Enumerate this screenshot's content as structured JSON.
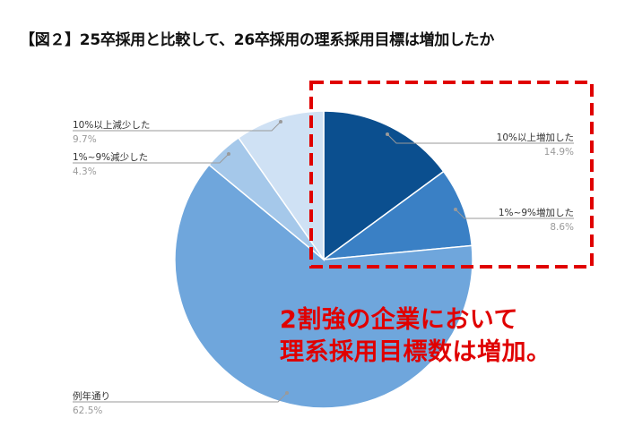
{
  "title": "【図２】25卒採用と比較して、26卒採用の理系採用目標は増加したか",
  "callout": {
    "line1": "2割強の企業において",
    "line2": "理系採用目標数は増加。"
  },
  "colors": {
    "highlight_box": "#e00000",
    "callout_text": "#e00000"
  },
  "chart_data": {
    "type": "pie",
    "title": "【図２】25卒採用と比較して、26卒採用の理系採用目標は増加したか",
    "unit": "%",
    "start_angle_deg": 0,
    "direction": "clockwise",
    "slices": [
      {
        "label": "10%以上増加した",
        "value": 14.9,
        "display": "14.9%",
        "color": "#0b4f8f"
      },
      {
        "label": "1%~9%増加した",
        "value": 8.6,
        "display": "8.6%",
        "color": "#3a80c5"
      },
      {
        "label": "例年通り",
        "value": 62.5,
        "display": "62.5%",
        "color": "#6fa6dc"
      },
      {
        "label": "1%~9%減少した",
        "value": 4.3,
        "display": "4.3%",
        "color": "#a5c8ea"
      },
      {
        "label": "10%以上減少した",
        "value": 9.7,
        "display": "9.7%",
        "color": "#cfe1f4"
      }
    ],
    "highlighted_slices": [
      "10%以上増加した",
      "1%~9%増加した"
    ]
  }
}
